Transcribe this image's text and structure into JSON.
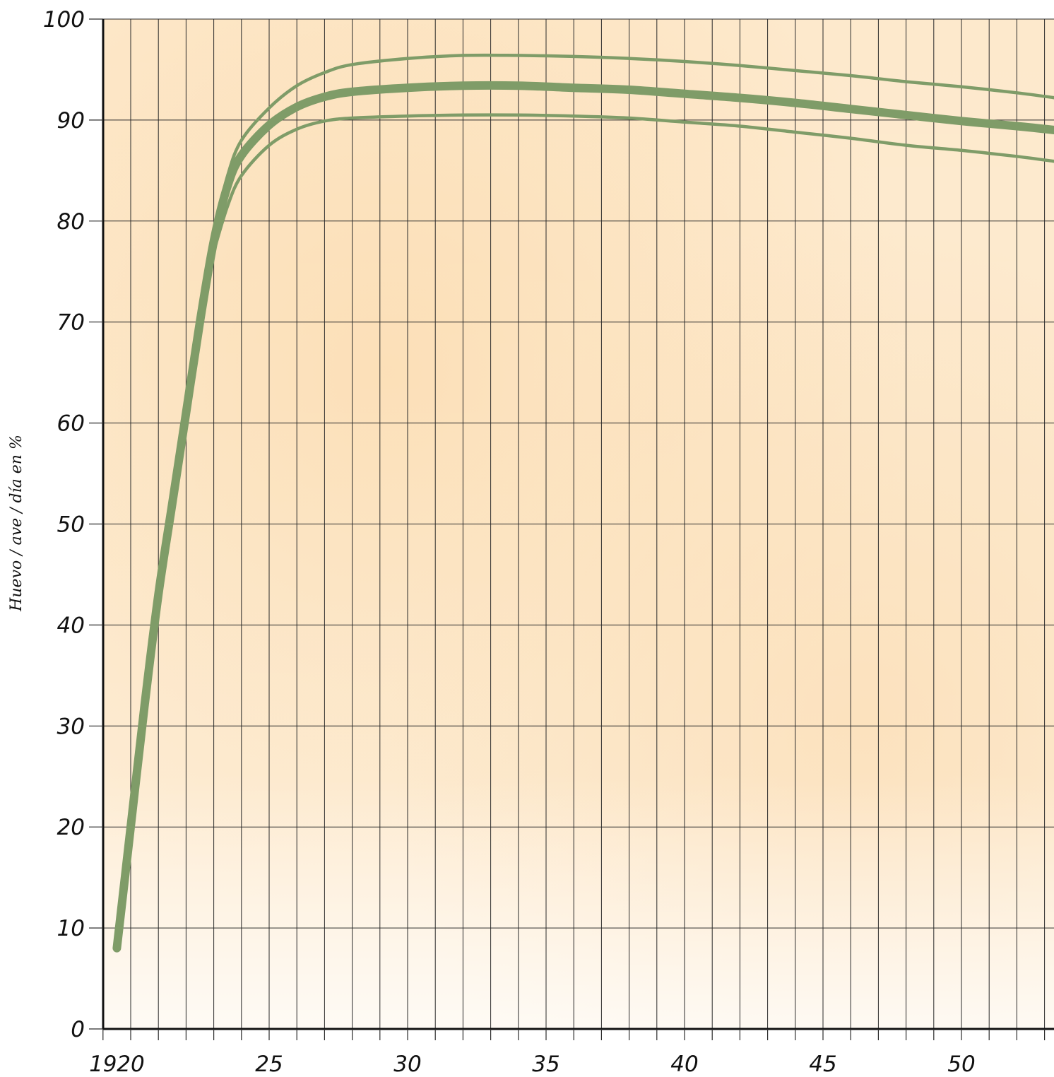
{
  "chart_data": {
    "type": "line",
    "title": "",
    "xlabel": "",
    "ylabel": "Huevo / ave / día en %",
    "xlim": [
      19,
      53.4
    ],
    "ylim": [
      0,
      100
    ],
    "x_ticks": [
      19,
      20,
      25,
      30,
      35,
      40,
      45,
      50
    ],
    "y_ticks": [
      0,
      10,
      20,
      30,
      40,
      50,
      60,
      70,
      80,
      90,
      100
    ],
    "grid": true,
    "legend": "none",
    "line_color": "#7f9c68",
    "background_color": "#fde9cc",
    "series": [
      {
        "style": "thick",
        "points": [
          [
            19.5,
            8
          ],
          [
            20,
            20
          ],
          [
            20.5,
            32
          ],
          [
            21,
            43
          ],
          [
            21.5,
            52
          ],
          [
            22,
            61
          ],
          [
            22.5,
            70
          ],
          [
            23,
            78
          ],
          [
            23.5,
            83.5
          ],
          [
            24,
            86.5
          ],
          [
            25,
            89.5
          ],
          [
            26,
            91.3
          ],
          [
            27,
            92.3
          ],
          [
            28,
            92.8
          ],
          [
            30,
            93.2
          ],
          [
            32,
            93.4
          ],
          [
            34,
            93.4
          ],
          [
            36,
            93.2
          ],
          [
            38,
            93
          ],
          [
            40,
            92.6
          ],
          [
            42,
            92.2
          ],
          [
            44,
            91.7
          ],
          [
            46,
            91.1
          ],
          [
            48,
            90.5
          ],
          [
            50,
            89.9
          ],
          [
            52,
            89.4
          ],
          [
            53.4,
            89
          ]
        ]
      },
      {
        "style": "thin",
        "points": [
          [
            23,
            79
          ],
          [
            23.5,
            84.5
          ],
          [
            24,
            88
          ],
          [
            25,
            91.2
          ],
          [
            26,
            93.4
          ],
          [
            27,
            94.7
          ],
          [
            28,
            95.5
          ],
          [
            30,
            96.1
          ],
          [
            32,
            96.4
          ],
          [
            34,
            96.4
          ],
          [
            36,
            96.3
          ],
          [
            38,
            96.1
          ],
          [
            40,
            95.8
          ],
          [
            42,
            95.4
          ],
          [
            44,
            94.9
          ],
          [
            46,
            94.4
          ],
          [
            48,
            93.8
          ],
          [
            50,
            93.3
          ],
          [
            52,
            92.7
          ],
          [
            53.4,
            92.2
          ]
        ]
      },
      {
        "style": "thin",
        "points": [
          [
            23,
            77
          ],
          [
            23.5,
            81.5
          ],
          [
            24,
            84.5
          ],
          [
            25,
            87.5
          ],
          [
            26,
            89.1
          ],
          [
            27,
            89.9
          ],
          [
            28,
            90.2
          ],
          [
            30,
            90.4
          ],
          [
            32,
            90.5
          ],
          [
            34,
            90.5
          ],
          [
            36,
            90.4
          ],
          [
            38,
            90.2
          ],
          [
            40,
            89.8
          ],
          [
            42,
            89.4
          ],
          [
            44,
            88.8
          ],
          [
            46,
            88.2
          ],
          [
            48,
            87.5
          ],
          [
            50,
            87
          ],
          [
            52,
            86.4
          ],
          [
            53.4,
            85.9
          ]
        ]
      }
    ]
  }
}
